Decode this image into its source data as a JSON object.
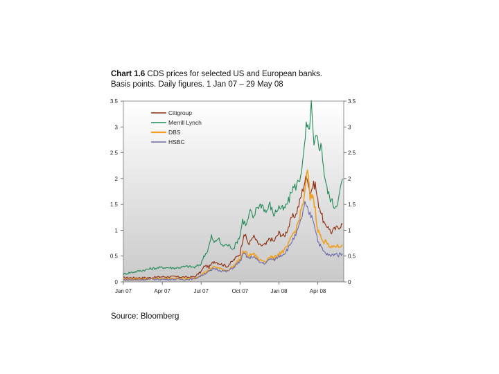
{
  "header": {
    "chart_label": "Chart 1.6",
    "title": "CDS prices for selected US and European banks.",
    "subtitle": "Basis points. Daily figures. 1 Jan 07 – 29 May 08"
  },
  "source": "Source: Bloomberg",
  "chart_data": {
    "type": "line",
    "title": "Chart 1.6 CDS prices for selected US and European banks.",
    "subtitle": "Basis points. Daily figures. 1 Jan 07 – 29 May 08",
    "xlabel": "",
    "ylabel": "",
    "x_ticks": [
      "Jan 07",
      "Apr 07",
      "Jul 07",
      "Oct 07",
      "Jan 08",
      "Apr 08"
    ],
    "y_ticks_left": [
      "0",
      "0.5",
      "1",
      "1.5",
      "2",
      "2.5",
      "3",
      "3.5"
    ],
    "y_ticks_right": [
      "0",
      "0.5",
      "1",
      "1.5",
      "2",
      "2.5",
      "3",
      "3.5"
    ],
    "ylim": [
      0,
      3.5
    ],
    "x_months": [
      0,
      17
    ],
    "grid": false,
    "legend_position": "top-left",
    "series": [
      {
        "name": "Citigroup",
        "color": "#8b2a0a",
        "x": [
          0,
          1,
          2,
          3,
          4,
          5,
          5.5,
          6,
          6.3,
          6.6,
          7,
          7.5,
          8,
          8.5,
          9,
          9.3,
          9.7,
          10,
          10.5,
          11,
          11.3,
          11.6,
          12,
          12.4,
          12.8,
          13,
          13.3,
          13.6,
          14,
          14.2,
          14.4,
          14.6,
          14.8,
          15,
          15.2,
          15.4,
          15.6,
          15.8,
          16,
          16.2,
          16.5,
          16.9
        ],
        "y": [
          0.08,
          0.08,
          0.08,
          0.1,
          0.1,
          0.09,
          0.1,
          0.2,
          0.32,
          0.28,
          0.4,
          0.35,
          0.3,
          0.42,
          0.55,
          0.95,
          0.72,
          0.9,
          0.7,
          0.72,
          0.85,
          0.78,
          0.95,
          0.88,
          1.1,
          1.25,
          1.3,
          1.55,
          1.95,
          2.05,
          1.7,
          1.85,
          1.9,
          1.55,
          1.4,
          1.2,
          1.05,
          1.1,
          0.95,
          1.0,
          1.05,
          1.12
        ]
      },
      {
        "name": "Merrill Lynch",
        "color": "#1f8a55",
        "x": [
          0,
          0.5,
          1,
          2,
          3,
          4,
          5,
          5.5,
          6,
          6.2,
          6.5,
          6.8,
          7,
          7.3,
          7.6,
          8,
          8.5,
          9,
          9.2,
          9.5,
          9.8,
          10,
          10.3,
          10.7,
          11,
          11.3,
          11.6,
          12,
          12.4,
          12.8,
          13,
          13.3,
          13.6,
          13.9,
          14.1,
          14.3,
          14.5,
          14.7,
          14.9,
          15.1,
          15.3,
          15.5,
          15.7,
          15.9,
          16.1,
          16.3,
          16.6,
          16.9
        ],
        "y": [
          0.15,
          0.18,
          0.2,
          0.25,
          0.28,
          0.27,
          0.3,
          0.28,
          0.35,
          0.5,
          0.6,
          0.88,
          0.75,
          0.85,
          0.7,
          0.72,
          0.65,
          0.9,
          1.2,
          1.1,
          1.4,
          1.2,
          1.45,
          1.5,
          1.35,
          1.5,
          1.3,
          1.45,
          1.4,
          1.6,
          1.8,
          1.85,
          2.0,
          2.4,
          3.0,
          2.9,
          3.4,
          2.6,
          2.8,
          2.65,
          2.6,
          2.1,
          1.8,
          1.65,
          1.55,
          1.45,
          1.6,
          2.0
        ]
      },
      {
        "name": "DBS",
        "color": "#f0a020",
        "x": [
          0,
          1,
          2,
          3,
          4,
          5,
          5.5,
          6,
          6.4,
          6.8,
          7,
          7.5,
          8,
          8.5,
          9,
          9.3,
          9.7,
          10,
          10.5,
          11,
          11.3,
          11.6,
          12,
          12.4,
          12.8,
          13,
          13.3,
          13.6,
          14,
          14.2,
          14.4,
          14.6,
          14.8,
          15,
          15.2,
          15.4,
          15.6,
          15.8,
          16,
          16.3,
          16.6,
          16.9
        ],
        "y": [
          0.05,
          0.05,
          0.06,
          0.06,
          0.07,
          0.06,
          0.07,
          0.14,
          0.2,
          0.25,
          0.3,
          0.25,
          0.22,
          0.3,
          0.45,
          0.6,
          0.5,
          0.55,
          0.42,
          0.4,
          0.5,
          0.45,
          0.55,
          0.6,
          0.75,
          0.9,
          1.0,
          1.25,
          1.7,
          2.2,
          1.6,
          1.7,
          1.4,
          1.0,
          0.9,
          0.75,
          0.85,
          0.7,
          0.65,
          0.7,
          0.68,
          0.72
        ]
      },
      {
        "name": "HSBC",
        "color": "#6a6aa8",
        "x": [
          0,
          1,
          2,
          3,
          4,
          5,
          5.5,
          6,
          6.4,
          6.8,
          7,
          7.5,
          8,
          8.5,
          9,
          9.3,
          9.7,
          10,
          10.5,
          11,
          11.3,
          11.6,
          12,
          12.4,
          12.8,
          13,
          13.3,
          13.6,
          14,
          14.2,
          14.4,
          14.6,
          14.8,
          15,
          15.2,
          15.4,
          15.6,
          15.8,
          16,
          16.3,
          16.6,
          16.9
        ],
        "y": [
          0.04,
          0.04,
          0.05,
          0.05,
          0.05,
          0.05,
          0.06,
          0.12,
          0.18,
          0.22,
          0.26,
          0.22,
          0.2,
          0.28,
          0.4,
          0.55,
          0.45,
          0.5,
          0.38,
          0.36,
          0.45,
          0.42,
          0.5,
          0.55,
          0.68,
          0.8,
          0.9,
          1.1,
          1.5,
          1.4,
          1.3,
          1.25,
          1.05,
          0.8,
          0.7,
          0.6,
          0.55,
          0.52,
          0.5,
          0.55,
          0.52,
          0.55
        ]
      }
    ]
  }
}
